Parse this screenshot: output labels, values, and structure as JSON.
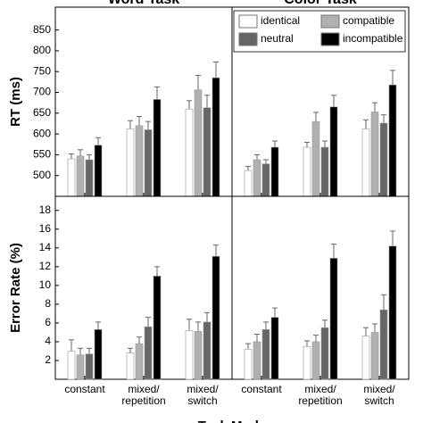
{
  "chart_data": [
    {
      "type": "bar",
      "title": "Word Task",
      "y_label": "RT (ms)",
      "categories": [
        "constant",
        "mixed/\nrepetition",
        "mixed/\nswitch"
      ],
      "series": [
        {
          "name": "identical",
          "color": "#ffffff",
          "values": [
            540,
            612,
            660
          ],
          "errors": [
            12,
            20,
            20
          ]
        },
        {
          "name": "compatible",
          "color": "#b0b0b0",
          "values": [
            547,
            620,
            706
          ],
          "errors": [
            15,
            22,
            35
          ]
        },
        {
          "name": "neutral",
          "color": "#666666",
          "values": [
            538,
            610,
            663
          ],
          "errors": [
            12,
            20,
            30
          ]
        },
        {
          "name": "incompatible",
          "color": "#000000",
          "values": [
            573,
            683,
            735
          ],
          "errors": [
            18,
            30,
            38
          ]
        }
      ],
      "ylim": [
        450,
        905
      ],
      "yticks": [
        500,
        550,
        600,
        650,
        700,
        750,
        800,
        850
      ]
    },
    {
      "type": "bar",
      "title": "Color Task",
      "legend": "upper right",
      "categories": [
        "constant",
        "mixed/\nrepetition",
        "mixed/\nswitch"
      ],
      "series": [
        {
          "name": "identical",
          "color": "#ffffff",
          "values": [
            512,
            568,
            612
          ],
          "errors": [
            10,
            12,
            22
          ]
        },
        {
          "name": "compatible",
          "color": "#b0b0b0",
          "values": [
            538,
            630,
            653
          ],
          "errors": [
            12,
            22,
            22
          ]
        },
        {
          "name": "neutral",
          "color": "#666666",
          "values": [
            528,
            568,
            626
          ],
          "errors": [
            10,
            15,
            20
          ]
        },
        {
          "name": "incompatible",
          "color": "#000000",
          "values": [
            568,
            665,
            718
          ],
          "errors": [
            15,
            28,
            35
          ]
        }
      ],
      "ylim": [
        450,
        905
      ]
    },
    {
      "type": "bar",
      "y_label": "Error Rate (%)",
      "x_label": "Task Mode",
      "categories": [
        "constant",
        "mixed/\nrepetition",
        "mixed/\nswitch"
      ],
      "series": [
        {
          "name": "identical",
          "color": "#ffffff",
          "values": [
            3.0,
            2.8,
            5.2
          ],
          "errors": [
            1.2,
            0.5,
            1.2
          ]
        },
        {
          "name": "compatible",
          "color": "#b0b0b0",
          "values": [
            2.6,
            3.8,
            5.1
          ],
          "errors": [
            0.7,
            0.7,
            1.0
          ]
        },
        {
          "name": "neutral",
          "color": "#666666",
          "values": [
            2.7,
            5.6,
            6.1
          ],
          "errors": [
            0.6,
            1.0,
            1.0
          ]
        },
        {
          "name": "incompatible",
          "color": "#000000",
          "values": [
            5.3,
            11.0,
            13.1
          ],
          "errors": [
            0.8,
            1.0,
            1.2
          ]
        }
      ],
      "ylim": [
        0,
        19.5
      ],
      "yticks": [
        2,
        4,
        6,
        8,
        10,
        12,
        14,
        16,
        18
      ]
    },
    {
      "type": "bar",
      "categories": [
        "constant",
        "mixed/\nrepetition",
        "mixed/\nswitch"
      ],
      "series": [
        {
          "name": "identical",
          "color": "#ffffff",
          "values": [
            3.2,
            3.5,
            4.6
          ],
          "errors": [
            0.6,
            0.6,
            0.9
          ]
        },
        {
          "name": "compatible",
          "color": "#b0b0b0",
          "values": [
            4.0,
            4.0,
            5.0
          ],
          "errors": [
            0.8,
            0.7,
            0.9
          ]
        },
        {
          "name": "neutral",
          "color": "#666666",
          "values": [
            5.3,
            5.5,
            7.4
          ],
          "errors": [
            0.8,
            0.8,
            1.6
          ]
        },
        {
          "name": "incompatible",
          "color": "#000000",
          "values": [
            6.6,
            12.9,
            14.2
          ],
          "errors": [
            1.0,
            1.5,
            1.6
          ]
        }
      ],
      "ylim": [
        0,
        19.5
      ]
    }
  ]
}
